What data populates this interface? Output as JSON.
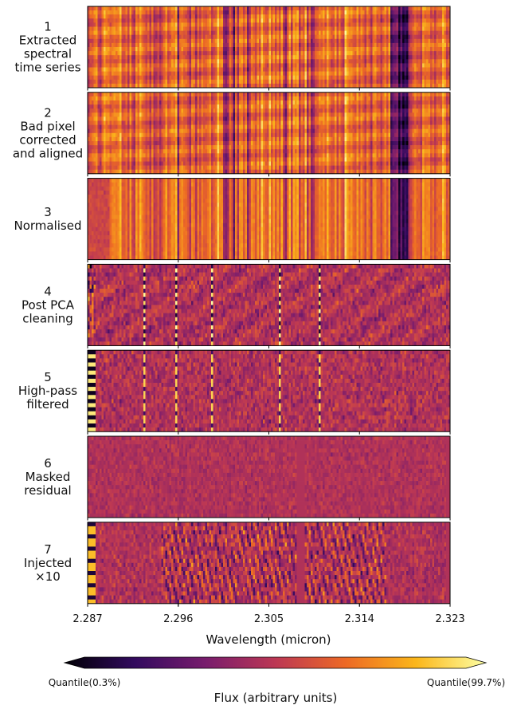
{
  "chart_data": {
    "type": "heatmap",
    "panels": [
      {
        "index": "1",
        "label": [
          "Extracted",
          "spectral",
          "time series"
        ],
        "style": "raw"
      },
      {
        "index": "2",
        "label": [
          "Bad pixel",
          "corrected",
          "and aligned"
        ],
        "style": "raw"
      },
      {
        "index": "3",
        "label": [
          "Normalised"
        ],
        "style": "normalised"
      },
      {
        "index": "4",
        "label": [
          "Post PCA",
          "cleaning"
        ],
        "style": "pca"
      },
      {
        "index": "5",
        "label": [
          "High-pass",
          "filtered"
        ],
        "style": "highpass"
      },
      {
        "index": "6",
        "label": [
          "Masked",
          "residual"
        ],
        "style": "masked"
      },
      {
        "index": "7",
        "label": [
          "Injected",
          "×10"
        ],
        "style": "injected"
      }
    ],
    "x_ticks": [
      "2.287",
      "2.296",
      "2.305",
      "2.314",
      "2.323"
    ],
    "xlim": [
      2.287,
      2.323
    ],
    "xlabel": "Wavelength (micron)",
    "mask_range": [
      2.3078,
      2.3083
    ],
    "colormap": [
      "#000004",
      "#320a5e",
      "#781c6d",
      "#bc3754",
      "#ed6925",
      "#fbb61a",
      "#fcffa4"
    ],
    "colorbar": {
      "label": "Flux (arbitrary units)",
      "min_label": "Quantile(0.3%)",
      "max_label": "Quantile(99.7%)"
    }
  }
}
